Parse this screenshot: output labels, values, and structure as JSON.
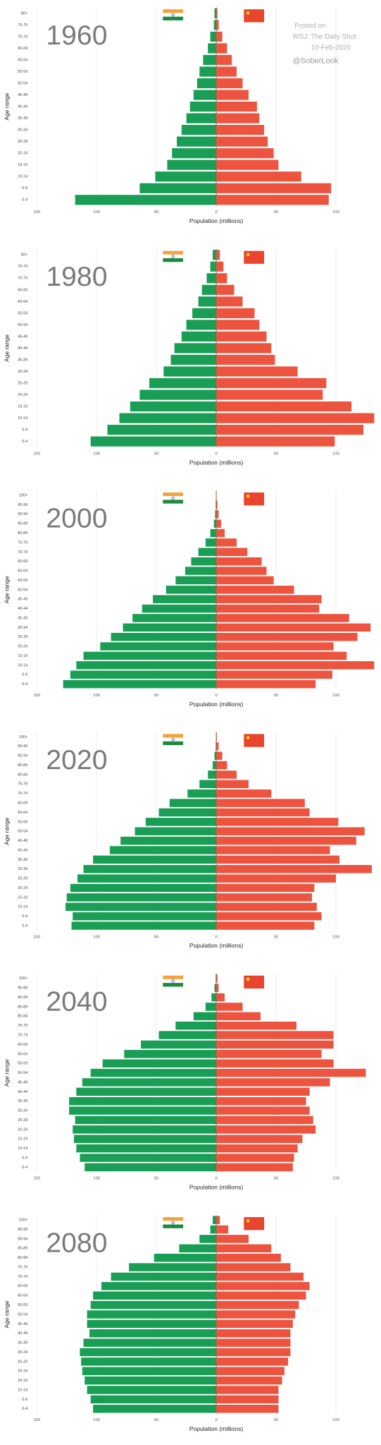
{
  "chart_data": [
    {
      "type": "pyramid",
      "title": "1960",
      "xlabel": "Population (millions)",
      "ylabel": "Age range",
      "annotations": [
        "Posted on",
        "WSJ: The Daily Shot",
        "10-Feb-2020",
        "@SoberLook"
      ],
      "categories": [
        "0-4",
        "5-9",
        "10-14",
        "15-19",
        "20-24",
        "25-29",
        "30-34",
        "35-39",
        "40-44",
        "45-49",
        "50-54",
        "55-59",
        "60-64",
        "65-69",
        "70-74",
        "75-79",
        "80+"
      ],
      "series": [
        {
          "name": "India",
          "color": "#1a9e55",
          "values": [
            118,
            64,
            51,
            41,
            37,
            33,
            29,
            25,
            22,
            19,
            16,
            14,
            11,
            7,
            5,
            2,
            1.5
          ]
        },
        {
          "name": "China",
          "color": "#ec543f",
          "values": [
            94,
            96,
            71,
            52,
            48,
            43,
            40,
            36,
            34,
            27,
            22,
            17,
            13,
            9,
            5,
            2,
            1
          ]
        }
      ],
      "xlim": [
        -150,
        135
      ],
      "xticks": [
        {
          "value": -150,
          "label": "150"
        },
        {
          "value": -100,
          "label": "100"
        },
        {
          "value": -50,
          "label": "50"
        },
        0,
        50,
        100
      ],
      "grid": true
    },
    {
      "type": "pyramid",
      "title": "1980",
      "xlabel": "Population (millions)",
      "ylabel": "Age range",
      "categories": [
        "0-4",
        "5-9",
        "10-14",
        "15-19",
        "20-24",
        "25-29",
        "30-34",
        "35-39",
        "40-44",
        "45-49",
        "50-54",
        "55-59",
        "60-64",
        "65-69",
        "70-74",
        "75-79",
        "80+"
      ],
      "series": [
        {
          "name": "India",
          "color": "#1a9e55",
          "values": [
            105,
            91,
            81,
            72,
            64,
            56,
            44,
            38,
            35,
            29,
            25,
            20,
            15,
            12,
            8,
            5,
            3
          ]
        },
        {
          "name": "China",
          "color": "#ec543f",
          "values": [
            99,
            123,
            132,
            113,
            89,
            92,
            68,
            49,
            46,
            42,
            36,
            32,
            22,
            15,
            9,
            6,
            3
          ]
        }
      ],
      "xlim": [
        -150,
        135
      ],
      "xticks": [
        {
          "value": -150,
          "label": "150"
        },
        {
          "value": -100,
          "label": "100"
        },
        {
          "value": -50,
          "label": "50"
        },
        0,
        50,
        100
      ],
      "grid": true
    },
    {
      "type": "pyramid",
      "title": "2000",
      "xlabel": "Population (millions)",
      "ylabel": "Age range",
      "categories": [
        "0-4",
        "5-9",
        "10-14",
        "15-19",
        "20-24",
        "25-29",
        "30-34",
        "35-39",
        "40-44",
        "45-49",
        "50-54",
        "55-59",
        "60-64",
        "65-69",
        "70-74",
        "75-79",
        "80-84",
        "85-89",
        "90-94",
        "95-99",
        "100+"
      ],
      "series": [
        {
          "name": "India",
          "color": "#1a9e55",
          "values": [
            128,
            122,
            117,
            111,
            97,
            88,
            78,
            70,
            62,
            53,
            42,
            34,
            26,
            21,
            15,
            9,
            5,
            2,
            1,
            0.5,
            0.2
          ]
        },
        {
          "name": "China",
          "color": "#ec543f",
          "values": [
            83,
            97,
            132,
            109,
            98,
            118,
            129,
            111,
            86,
            88,
            65,
            48,
            42,
            38,
            26,
            17,
            7,
            4,
            2,
            1,
            0.3
          ]
        }
      ],
      "xlim": [
        -150,
        135
      ],
      "xticks": [
        {
          "value": -150,
          "label": "150"
        },
        {
          "value": -100,
          "label": "100"
        },
        {
          "value": -50,
          "label": "50"
        },
        0,
        50,
        100
      ],
      "grid": true
    },
    {
      "type": "pyramid",
      "title": "2020",
      "xlabel": "Population (millions)",
      "ylabel": "Age range",
      "categories": [
        "0-4",
        "5-9",
        "10-14",
        "15-19",
        "20-24",
        "25-29",
        "30-34",
        "35-39",
        "40-44",
        "45-49",
        "50-54",
        "55-59",
        "60-64",
        "65-69",
        "70-74",
        "75-79",
        "80-84",
        "85-89",
        "90-94",
        "95-99",
        "100+"
      ],
      "series": [
        {
          "name": "India",
          "color": "#1a9e55",
          "values": [
            121,
            120,
            126,
            125,
            122,
            116,
            111,
            103,
            89,
            80,
            68,
            59,
            48,
            39,
            24,
            14,
            7,
            3,
            1.5,
            0.5,
            0.2
          ]
        },
        {
          "name": "China",
          "color": "#ec543f",
          "values": [
            82,
            88,
            84,
            80,
            82,
            100,
            130,
            103,
            95,
            117,
            124,
            102,
            78,
            74,
            46,
            27,
            17,
            9,
            5,
            2,
            0.5
          ]
        }
      ],
      "xlim": [
        -150,
        135
      ],
      "xticks": [
        {
          "value": -150,
          "label": "150"
        },
        {
          "value": -100,
          "label": "100"
        },
        {
          "value": -50,
          "label": "50"
        },
        0,
        50,
        100
      ],
      "grid": true
    },
    {
      "type": "pyramid",
      "title": "2040",
      "xlabel": "Population (millions)",
      "ylabel": "Age range",
      "categories": [
        "0-4",
        "5-9",
        "10-14",
        "15-19",
        "20-24",
        "25-29",
        "30-34",
        "35-39",
        "40-44",
        "45-49",
        "50-54",
        "55-59",
        "60-64",
        "65-69",
        "70-74",
        "75-79",
        "80-84",
        "85-89",
        "90-94",
        "95-99",
        "100+"
      ],
      "series": [
        {
          "name": "India",
          "color": "#1a9e55",
          "values": [
            110,
            114,
            117,
            119,
            120,
            118,
            123,
            123,
            117,
            112,
            105,
            95,
            77,
            63,
            48,
            34,
            19,
            9,
            4,
            1.5,
            0.5
          ]
        },
        {
          "name": "China",
          "color": "#ec543f",
          "values": [
            64,
            65,
            68,
            72,
            83,
            81,
            78,
            75,
            78,
            95,
            125,
            98,
            88,
            98,
            98,
            67,
            37,
            22,
            7,
            2,
            1
          ]
        }
      ],
      "xlim": [
        -150,
        135
      ],
      "xticks": [
        {
          "value": -150,
          "label": "150"
        },
        {
          "value": -100,
          "label": "100"
        },
        {
          "value": -50,
          "label": "50"
        },
        0,
        50,
        100
      ],
      "grid": true
    },
    {
      "type": "pyramid",
      "title": "2080",
      "xlabel": "Population (millions)",
      "ylabel": "Age range",
      "categories": [
        "0-4",
        "5-9",
        "10-14",
        "15-19",
        "20-24",
        "25-29",
        "30-34",
        "35-39",
        "40-44",
        "45-49",
        "50-54",
        "55-59",
        "60-64",
        "65-69",
        "70-74",
        "75-79",
        "80-84",
        "85-89",
        "90-94",
        "95-99",
        "100+"
      ],
      "series": [
        {
          "name": "India",
          "color": "#1a9e55",
          "values": [
            103,
            105,
            108,
            110,
            112,
            113,
            114,
            111,
            106,
            108,
            108,
            105,
            103,
            96,
            88,
            73,
            52,
            31,
            14,
            5,
            3
          ]
        },
        {
          "name": "China",
          "color": "#ec543f",
          "values": [
            52,
            52,
            52,
            55,
            57,
            60,
            62,
            62,
            62,
            64,
            66,
            69,
            75,
            78,
            73,
            62,
            54,
            46,
            27,
            10,
            3
          ]
        }
      ],
      "xlim": [
        -150,
        135
      ],
      "xticks": [
        {
          "value": -150,
          "label": "150"
        },
        {
          "value": -100,
          "label": "100"
        },
        {
          "value": -50,
          "label": "50"
        },
        0,
        50,
        100
      ],
      "grid": true
    }
  ]
}
